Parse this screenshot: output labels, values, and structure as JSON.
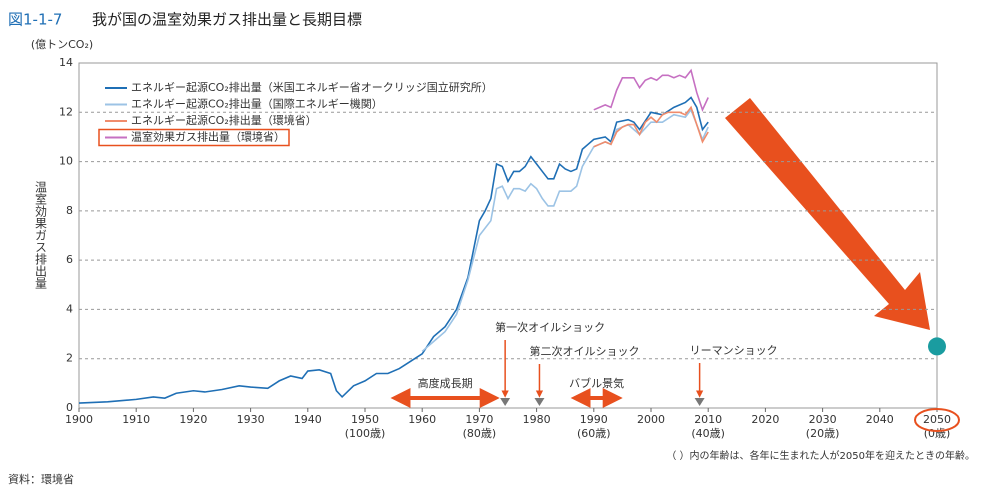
{
  "chart_data": {
    "type": "line",
    "figure_number": "図1-1-7",
    "title": "我が国の温室効果ガス排出量と長期目標",
    "y_unit": "(億トンCO₂)",
    "y_label": "温室効果ガス排出量",
    "source": "資料：環境省",
    "note": "（ ）内の年齢は、各年に生まれた人が2050年を迎えたときの年齢。",
    "xlim": [
      1900,
      2050
    ],
    "xticks": [
      1900,
      1910,
      1920,
      1930,
      1940,
      1950,
      1960,
      1970,
      1980,
      1990,
      2000,
      2010,
      2020,
      2030,
      2040,
      2050
    ],
    "xtick_ages": [
      {
        "value": 1950,
        "label": "(100歳)"
      },
      {
        "value": 1970,
        "label": "(80歳)"
      },
      {
        "value": 1990,
        "label": "(60歳)"
      },
      {
        "value": 2010,
        "label": "(40歳)"
      },
      {
        "value": 2030,
        "label": "(20歳)"
      },
      {
        "value": 2050,
        "label": "(0歳)"
      }
    ],
    "ylim": [
      0,
      14
    ],
    "yticks": [
      0,
      2,
      4,
      6,
      8,
      10,
      12,
      14
    ],
    "grid": true,
    "legend": "upper left",
    "series": [
      {
        "name": "エネルギー起源CO₂排出量（米国エネルギー省オークリッジ国立研究所）",
        "color": "#1f6fb5",
        "x": [
          1900,
          1905,
          1910,
          1913,
          1915,
          1917,
          1920,
          1922,
          1925,
          1928,
          1930,
          1933,
          1935,
          1937,
          1939,
          1940,
          1942,
          1944,
          1945,
          1946,
          1948,
          1950,
          1952,
          1954,
          1956,
          1958,
          1960,
          1962,
          1964,
          1966,
          1968,
          1970,
          1971,
          1972,
          1973,
          1974,
          1975,
          1976,
          1977,
          1978,
          1979,
          1980,
          1981,
          1982,
          1983,
          1984,
          1985,
          1986,
          1987,
          1988,
          1989,
          1990,
          1992,
          1993,
          1994,
          1996,
          1997,
          1998,
          2000,
          2002,
          2004,
          2006,
          2007,
          2008,
          2009,
          2010
        ],
        "values": [
          0.2,
          0.25,
          0.35,
          0.45,
          0.4,
          0.6,
          0.7,
          0.65,
          0.75,
          0.9,
          0.85,
          0.8,
          1.1,
          1.3,
          1.2,
          1.5,
          1.55,
          1.4,
          0.7,
          0.45,
          0.9,
          1.1,
          1.4,
          1.4,
          1.6,
          1.9,
          2.2,
          2.9,
          3.3,
          4.0,
          5.3,
          7.6,
          8.0,
          8.5,
          9.9,
          9.8,
          9.2,
          9.6,
          9.6,
          9.8,
          10.2,
          9.9,
          9.6,
          9.3,
          9.3,
          9.9,
          9.7,
          9.6,
          9.7,
          10.5,
          10.7,
          10.9,
          11.0,
          10.8,
          11.6,
          11.7,
          11.6,
          11.3,
          12.0,
          11.9,
          12.2,
          12.4,
          12.6,
          12.2,
          11.3,
          11.6
        ]
      },
      {
        "name": "エネルギー起源CO₂排出量（国際エネルギー機関）",
        "color": "#9cc3e5",
        "x": [
          1960,
          1962,
          1964,
          1966,
          1968,
          1970,
          1972,
          1973,
          1974,
          1975,
          1976,
          1977,
          1978,
          1979,
          1980,
          1981,
          1982,
          1983,
          1984,
          1985,
          1986,
          1987,
          1988,
          1990,
          1992,
          1993,
          1994,
          1996,
          1998,
          2000,
          2002,
          2004,
          2006,
          2007,
          2008,
          2009,
          2010
        ],
        "values": [
          2.3,
          2.7,
          3.1,
          3.8,
          5.2,
          7.0,
          7.6,
          8.9,
          9.0,
          8.5,
          8.9,
          8.9,
          8.8,
          9.1,
          8.9,
          8.5,
          8.2,
          8.2,
          8.8,
          8.8,
          8.8,
          9.0,
          9.8,
          10.6,
          10.8,
          10.7,
          11.3,
          11.5,
          11.1,
          11.6,
          11.6,
          11.9,
          11.8,
          12.1,
          11.5,
          10.9,
          11.4
        ]
      },
      {
        "name": "エネルギー起源CO₂排出量（環境省）",
        "color": "#f08c6c",
        "x": [
          1990,
          1991,
          1992,
          1993,
          1994,
          1995,
          1996,
          1997,
          1998,
          1999,
          2000,
          2001,
          2002,
          2003,
          2004,
          2005,
          2006,
          2007,
          2008,
          2009,
          2010
        ],
        "values": [
          10.6,
          10.7,
          10.8,
          10.7,
          11.2,
          11.4,
          11.5,
          11.5,
          11.1,
          11.6,
          11.8,
          11.6,
          11.9,
          12.0,
          12.0,
          12.0,
          11.9,
          12.2,
          11.5,
          10.8,
          11.2
        ]
      },
      {
        "name": "温室効果ガス排出量（環境省）",
        "color": "#c670c2",
        "x": [
          1990,
          1991,
          1992,
          1993,
          1994,
          1995,
          1996,
          1997,
          1998,
          1999,
          2000,
          2001,
          2002,
          2003,
          2004,
          2005,
          2006,
          2007,
          2008,
          2009,
          2010
        ],
        "values": [
          12.1,
          12.2,
          12.3,
          12.2,
          12.9,
          13.4,
          13.4,
          13.4,
          13.0,
          13.3,
          13.4,
          13.3,
          13.5,
          13.5,
          13.4,
          13.5,
          13.4,
          13.7,
          12.8,
          12.1,
          12.6
        ]
      }
    ],
    "target": {
      "x": 2050,
      "value": 2.5,
      "color": "#1a9ca0"
    },
    "events": [
      {
        "text": "第一次オイルショック",
        "x": 1974.5
      },
      {
        "text": "第二次オイルショック",
        "x": 1980.5
      },
      {
        "text": "リーマンショック",
        "x": 2008.5
      }
    ],
    "periods": [
      {
        "text": "高度成長期",
        "start": 1955.5,
        "end": 1972.5
      },
      {
        "text": "バブル景気",
        "start": 1987,
        "end": 1994
      }
    ]
  }
}
